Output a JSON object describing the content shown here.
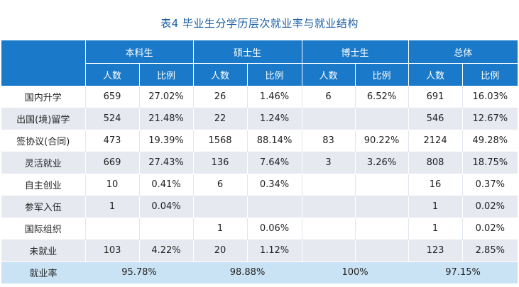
{
  "title": "表4  毕业生分学历层次就业率与就业结构",
  "header": {
    "groups": [
      "本科生",
      "硕士生",
      "博士生",
      "总体"
    ],
    "sub": [
      "人数",
      "比例"
    ]
  },
  "rows": [
    {
      "label": "国内升学",
      "cells": [
        "659",
        "27.02%",
        "26",
        "1.46%",
        "6",
        "6.52%",
        "691",
        "16.03%"
      ]
    },
    {
      "label": "出国(境)留学",
      "cells": [
        "524",
        "21.48%",
        "22",
        "1.24%",
        "",
        "",
        "546",
        "12.67%"
      ]
    },
    {
      "label": "签协议(合同)",
      "cells": [
        "473",
        "19.39%",
        "1568",
        "88.14%",
        "83",
        "90.22%",
        "2124",
        "49.28%"
      ]
    },
    {
      "label": "灵活就业",
      "cells": [
        "669",
        "27.43%",
        "136",
        "7.64%",
        "3",
        "3.26%",
        "808",
        "18.75%"
      ]
    },
    {
      "label": "自主创业",
      "cells": [
        "10",
        "0.41%",
        "6",
        "0.34%",
        "",
        "",
        "16",
        "0.37%"
      ]
    },
    {
      "label": "参军入伍",
      "cells": [
        "1",
        "0.04%",
        "",
        "",
        "",
        "",
        "1",
        "0.02%"
      ]
    },
    {
      "label": "国际组织",
      "cells": [
        "",
        "",
        "1",
        "0.06%",
        "",
        "",
        "1",
        "0.02%"
      ]
    },
    {
      "label": "未就业",
      "cells": [
        "103",
        "4.22%",
        "20",
        "1.12%",
        "",
        "",
        "123",
        "2.85%"
      ]
    }
  ],
  "summary": {
    "label": "就业率",
    "values": [
      "95.78%",
      "98.88%",
      "100%",
      "97.15%"
    ]
  }
}
